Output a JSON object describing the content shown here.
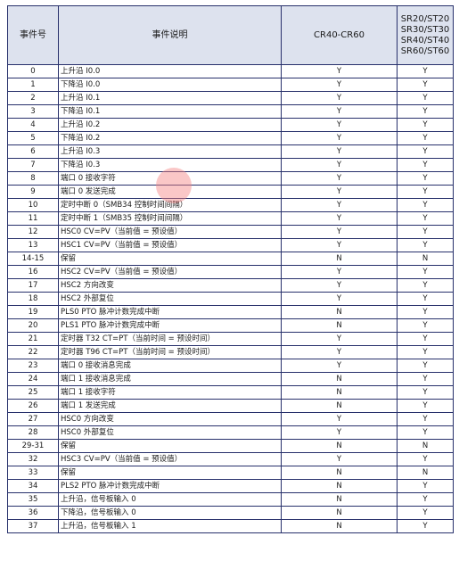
{
  "table": {
    "headers": {
      "event_no": "事件号",
      "description": "事件说明",
      "cr_models": "CR40-CR60",
      "sr_models": [
        "SR20/ST20",
        "SR30/ST30",
        "SR40/ST40",
        "SR60/ST60"
      ]
    },
    "rows": [
      {
        "no": "0",
        "desc": "上升沿 I0.0",
        "cr": "Y",
        "sr": "Y"
      },
      {
        "no": "1",
        "desc": "下降沿 I0.0",
        "cr": "Y",
        "sr": "Y"
      },
      {
        "no": "2",
        "desc": "上升沿 I0.1",
        "cr": "Y",
        "sr": "Y"
      },
      {
        "no": "3",
        "desc": "下降沿 I0.1",
        "cr": "Y",
        "sr": "Y"
      },
      {
        "no": "4",
        "desc": "上升沿 I0.2",
        "cr": "Y",
        "sr": "Y"
      },
      {
        "no": "5",
        "desc": "下降沿 I0.2",
        "cr": "Y",
        "sr": "Y"
      },
      {
        "no": "6",
        "desc": "上升沿 I0.3",
        "cr": "Y",
        "sr": "Y"
      },
      {
        "no": "7",
        "desc": "下降沿 I0.3",
        "cr": "Y",
        "sr": "Y"
      },
      {
        "no": "8",
        "desc": "端口 0 接收字符",
        "cr": "Y",
        "sr": "Y"
      },
      {
        "no": "9",
        "desc": "端口 0 发送完成",
        "cr": "Y",
        "sr": "Y"
      },
      {
        "no": "10",
        "desc": "定时中断 0（SMB34 控制时间间隔）",
        "cr": "Y",
        "sr": "Y"
      },
      {
        "no": "11",
        "desc": "定时中断 1（SMB35 控制时间间隔）",
        "cr": "Y",
        "sr": "Y"
      },
      {
        "no": "12",
        "desc": "HSC0 CV=PV（当前值 = 预设值）",
        "cr": "Y",
        "sr": "Y"
      },
      {
        "no": "13",
        "desc": "HSC1 CV=PV（当前值 = 预设值）",
        "cr": "Y",
        "sr": "Y"
      },
      {
        "no": "14-15",
        "desc": "保留",
        "cr": "N",
        "sr": "N"
      },
      {
        "no": "16",
        "desc": "HSC2 CV=PV（当前值 = 预设值）",
        "cr": "Y",
        "sr": "Y"
      },
      {
        "no": "17",
        "desc": "HSC2 方向改变",
        "cr": "Y",
        "sr": "Y"
      },
      {
        "no": "18",
        "desc": "HSC2 外部复位",
        "cr": "Y",
        "sr": "Y"
      },
      {
        "no": "19",
        "desc": "PLS0 PTO 脉冲计数完成中断",
        "cr": "N",
        "sr": "Y"
      },
      {
        "no": "20",
        "desc": "PLS1 PTO 脉冲计数完成中断",
        "cr": "N",
        "sr": "Y"
      },
      {
        "no": "21",
        "desc": "定时器 T32 CT=PT（当前时间 = 预设时间）",
        "cr": "Y",
        "sr": "Y"
      },
      {
        "no": "22",
        "desc": "定时器 T96 CT=PT（当前时间 = 预设时间）",
        "cr": "Y",
        "sr": "Y"
      },
      {
        "no": "23",
        "desc": "端口 0 接收消息完成",
        "cr": "Y",
        "sr": "Y"
      },
      {
        "no": "24",
        "desc": "端口 1 接收消息完成",
        "cr": "N",
        "sr": "Y"
      },
      {
        "no": "25",
        "desc": "端口 1 接收字符",
        "cr": "N",
        "sr": "Y"
      },
      {
        "no": "26",
        "desc": "端口 1 发送完成",
        "cr": "N",
        "sr": "Y"
      },
      {
        "no": "27",
        "desc": "HSC0 方向改变",
        "cr": "Y",
        "sr": "Y"
      },
      {
        "no": "28",
        "desc": "HSC0 外部复位",
        "cr": "Y",
        "sr": "Y"
      },
      {
        "no": "29-31",
        "desc": "保留",
        "cr": "N",
        "sr": "N"
      },
      {
        "no": "32",
        "desc": "HSC3 CV=PV（当前值 = 预设值）",
        "cr": "Y",
        "sr": "Y"
      },
      {
        "no": "33",
        "desc": "保留",
        "cr": "N",
        "sr": "N"
      },
      {
        "no": "34",
        "desc": "PLS2 PTO 脉冲计数完成中断",
        "cr": "N",
        "sr": "Y"
      },
      {
        "no": "35",
        "desc": "上升沿，信号板输入 0",
        "cr": "N",
        "sr": "Y"
      },
      {
        "no": "36",
        "desc": "下降沿，信号板输入 0",
        "cr": "N",
        "sr": "Y"
      },
      {
        "no": "37",
        "desc": "上升沿，信号板输入 1",
        "cr": "N",
        "sr": "Y"
      }
    ]
  }
}
